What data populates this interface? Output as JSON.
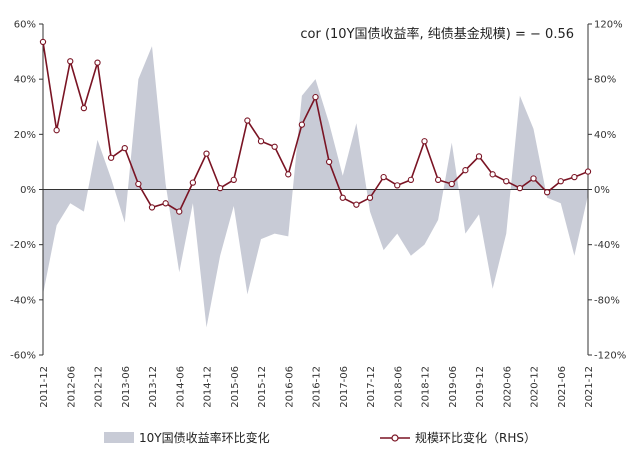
{
  "chart_data": {
    "type": "area",
    "annotation": "cor (10Y国债收益率, 纯债基金规模) = − 0.56",
    "legend_position": "bottom",
    "x": [
      "2011-12",
      "2012-03",
      "2012-06",
      "2012-09",
      "2012-12",
      "2013-03",
      "2013-06",
      "2013-09",
      "2013-12",
      "2014-03",
      "2014-06",
      "2014-09",
      "2014-12",
      "2015-03",
      "2015-06",
      "2015-09",
      "2015-12",
      "2016-03",
      "2016-06",
      "2016-09",
      "2016-12",
      "2017-03",
      "2017-06",
      "2017-09",
      "2017-12",
      "2018-03",
      "2018-06",
      "2018-09",
      "2018-12",
      "2019-03",
      "2019-06",
      "2019-09",
      "2019-12",
      "2020-03",
      "2020-06",
      "2020-09",
      "2020-12",
      "2021-03",
      "2021-06",
      "2021-09",
      "2021-12"
    ],
    "x_tick_labels": [
      "2011-12",
      "2012-06",
      "2012-12",
      "2013-06",
      "2013-12",
      "2014-06",
      "2014-12",
      "2015-06",
      "2015-12",
      "2016-06",
      "2016-12",
      "2017-06",
      "2017-12",
      "2018-06",
      "2018-12",
      "2019-06",
      "2019-12",
      "2020-06",
      "2020-12",
      "2021-06",
      "2021-12"
    ],
    "y_left": {
      "min": -60,
      "max": 60,
      "ticks": [
        "60%",
        "40%",
        "20%",
        "0%",
        "-20%",
        "-40%",
        "-60%"
      ]
    },
    "y_right": {
      "min": -120,
      "max": 120,
      "ticks": [
        "120%",
        "80%",
        "40%",
        "0%",
        "-40%",
        "-80%",
        "-120%"
      ]
    },
    "series": [
      {
        "name": "10Y国债收益率环比变化",
        "type": "area",
        "axis": "left",
        "color": "#c8cbd6",
        "values": [
          -38,
          -13,
          -5,
          -8,
          18,
          4,
          -12,
          40,
          52,
          2,
          -30,
          -5,
          -50,
          -24,
          -6,
          -38,
          -18,
          -16,
          -17,
          34,
          40,
          24,
          5,
          24,
          -8,
          -22,
          -16,
          -24,
          -20,
          -11,
          17,
          -16,
          -9,
          -36,
          -16,
          34,
          22,
          -3,
          -5,
          -24,
          -2
        ]
      },
      {
        "name": "规模环比变化（RHS）",
        "type": "line",
        "axis": "right",
        "color": "#7a1424",
        "values": [
          107,
          43,
          93,
          59,
          92,
          23,
          30,
          4,
          -13,
          -10,
          -16,
          5,
          26,
          1,
          7,
          50,
          35,
          31,
          11,
          47,
          67,
          20,
          -6,
          -11,
          -6,
          9,
          3,
          7,
          35,
          7,
          4,
          14,
          24,
          11,
          6,
          1,
          8,
          -2,
          6,
          9,
          13
        ]
      }
    ]
  }
}
